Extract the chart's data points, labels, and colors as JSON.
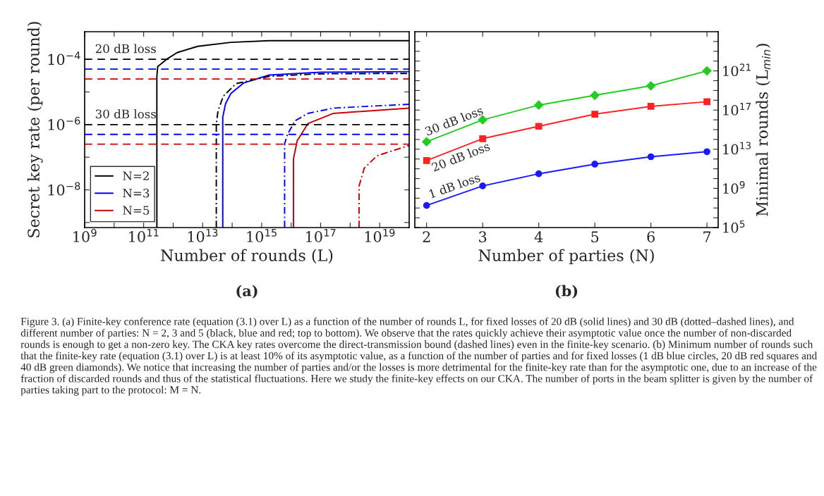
{
  "chart_data": [
    {
      "type": "line",
      "title": "(a)",
      "xlabel": "Number of rounds (L)",
      "ylabel": "Secret key rate (per round)",
      "log": "xy",
      "grid": false,
      "legend": "bottom left",
      "xlim": [
        1000000000.0,
        1e+20
      ],
      "ylim": [
        7e-10,
        0.0007
      ],
      "xticks": [
        {
          "value": 1000000000.0,
          "label": "10$^{9}$"
        },
        {
          "value": 10000000000.0,
          "label": null
        },
        {
          "value": 100000000000.0,
          "label": "10$^{11}$"
        },
        {
          "value": 1000000000000.0,
          "label": null
        },
        {
          "value": 10000000000000.0,
          "label": "10$^{13}$"
        },
        {
          "value": 100000000000000.0,
          "label": null
        },
        {
          "value": 1000000000000000.0,
          "label": "10$^{15}$"
        },
        {
          "value": 1e+16,
          "label": null
        },
        {
          "value": 1e+17,
          "label": "10$^{17}$"
        },
        {
          "value": 1e+18,
          "label": null
        },
        {
          "value": 1e+19,
          "label": "10$^{19}$"
        }
      ],
      "yticks": [
        {
          "value": 1e-09,
          "label": null
        },
        {
          "value": 1e-08,
          "label": "10$^{−8}$"
        },
        {
          "value": 1e-07,
          "label": null
        },
        {
          "value": 1e-06,
          "label": "10$^{−6}$"
        },
        {
          "value": 1e-05,
          "label": null
        },
        {
          "value": 0.0001,
          "label": "10$^{−4}$"
        }
      ],
      "series": [
        {
          "name": "N=2",
          "color": "#000000",
          "line_style": "solid",
          "x": [
            280000000000.0,
            280000000000.0,
            300000000000.0,
            600000000000.0,
            1350000000000.0,
            6800000000000.0,
            90000000000000.0,
            1800000000000000.0,
            1e+20
          ],
          "values": [
            7e-10,
            3e-05,
            6e-05,
            0.0001,
            0.00016,
            0.00025,
            0.00033,
            0.00037,
            0.00037
          ]
        },
        {
          "name": "N=3",
          "color": "#0000ff",
          "line_style": "solid",
          "x": [
            48000000000000.0,
            48000000000000.0,
            60000000000000.0,
            90000000000000.0,
            250000000000000.0,
            1800000000000000.0,
            1e+17,
            1e+20
          ],
          "values": [
            7e-10,
            1.7e-06,
            4.4e-06,
            8.9e-06,
            1.9e-05,
            3.3e-05,
            4e-05,
            4.2e-05
          ]
        },
        {
          "name": "N=5",
          "color": "#cc0000",
          "line_style": "solid",
          "x": [
            1.2e+16,
            1.2e+16,
            1.6e+16,
            3.7e+16,
            2.7e+17,
            1e+20
          ],
          "values": [
            7e-10,
            9e-08,
            3.2e-07,
            1.07e-06,
            2.2e-06,
            3.2e-06
          ]
        },
        {
          "color": "#000000",
          "line_style": "dashdot",
          "x": [
            29000000000000.0,
            29000000000000.0,
            33000000000000.0,
            50000000000000.0,
            135000000000000.0,
            1800000000000000.0,
            1e+17,
            1e+20
          ],
          "values": [
            7e-10,
            1e-06,
            2.6e-06,
            7.4e-06,
            1.8e-05,
            3e-05,
            3.6e-05,
            3.7e-05
          ]
        },
        {
          "color": "#0000ff",
          "line_style": "dashdot",
          "x": [
            6000000000000000.0,
            6000000000000000.0,
            7400000000000000.0,
            1.35e+16,
            3.7e+16,
            2.7e+17,
            1e+20
          ],
          "values": [
            7e-10,
            2.6e-07,
            4.9e-07,
            1.3e-06,
            2.2e-06,
            3.2e-06,
            4.2e-06
          ]
        },
        {
          "color": "#cc0000",
          "line_style": "dashdot",
          "x": [
            2e+18,
            2e+18,
            3e+18,
            8e+18,
            1e+20
          ],
          "values": [
            7e-10,
            1.3e-08,
            4.6e-08,
            1.1e-07,
            2.3e-07
          ]
        }
      ],
      "ref_lines": [
        {
          "axis": "y",
          "value": 0.0001,
          "label": "20 dB loss",
          "color": "#000000",
          "line_style": "dashed"
        },
        {
          "axis": "y",
          "value": 5e-05,
          "color": "#0000ff",
          "line_style": "dashed"
        },
        {
          "axis": "y",
          "value": 2.5e-05,
          "color": "#cc0000",
          "line_style": "dashed"
        },
        {
          "axis": "y",
          "value": 1e-06,
          "label": "30 dB loss",
          "color": "#000000",
          "line_style": "dashed"
        },
        {
          "axis": "y",
          "value": 5e-07,
          "color": "#0000ff",
          "line_style": "dashed"
        },
        {
          "axis": "y",
          "value": 2.5e-07,
          "color": "#cc0000",
          "line_style": "dashed"
        }
      ],
      "annotations": [
        "Figure 3. (a) Finite-key conference rate (equation (3.1) over L) as a function of the number of rounds L, for fixed losses of 20 dB (solid lines) and 30 dB (dotted–dashed lines), and different number of parties: N = 2, 3 and 5 (black, blue and red; top to bottom). We observe that the rates quickly achieve their asymptotic value once the number of non-discarded rounds is enough to get a non-zero key. The CKA key rates overcome the direct-transmission bound (dashed lines) even in the finite-key scenario. (b) Minimum number of rounds such that the finite-key rate (equation (3.1) over L) is at least 10% of its asymptotic value, as a function of the number of parties and for fixed losses (1 dB blue circles, 20 dB red squares and 40 dB green diamonds). We notice that increasing the number of parties and/or the losses is more detrimental for the finite-key rate than for the asymptotic one, due to an increase of the fraction of discarded rounds and thus of the statistical fluctuations. Here we study the finite-key effects on our CKA. The number of ports in the beam splitter is given by the number of parties taking part to the protocol: M = N."
      ]
    },
    {
      "type": "line",
      "title": "(b)",
      "xlabel": "Number of parties (N)",
      "ylabel": "Minimal rounds (L$_{min}$)",
      "log": "y",
      "grid": false,
      "legend": false,
      "x": [
        2,
        3,
        4,
        5,
        6,
        7
      ],
      "xlim": [
        1.79,
        7.2
      ],
      "xticks": [
        2,
        3,
        4,
        5,
        6,
        7
      ],
      "ylim": [
        100000.0,
        1e+25
      ],
      "yticks": [
        {
          "value": 100000.0,
          "label": "10$^{5}$"
        },
        {
          "value": 1000000.0,
          "label": null
        },
        {
          "value": 10000000.0,
          "label": null
        },
        {
          "value": 100000000.0,
          "label": null
        },
        {
          "value": 1000000000.0,
          "label": "10$^{9}$"
        },
        {
          "value": 10000000000.0,
          "label": null
        },
        {
          "value": 100000000000.0,
          "label": null
        },
        {
          "value": 1000000000000.0,
          "label": null
        },
        {
          "value": 10000000000000.0,
          "label": "10$^{13}$"
        },
        {
          "value": 100000000000000.0,
          "label": null
        },
        {
          "value": 1000000000000000.0,
          "label": null
        },
        {
          "value": 1e+16,
          "label": null
        },
        {
          "value": 1e+17,
          "label": "10$^{17}$"
        },
        {
          "value": 1e+18,
          "label": null
        },
        {
          "value": 1e+19,
          "label": null
        },
        {
          "value": 1e+20,
          "label": null
        },
        {
          "value": 1e+21,
          "label": "10$^{21}$"
        },
        {
          "value": 1e+22,
          "label": null
        },
        {
          "value": 1e+23,
          "label": null
        },
        {
          "value": 1e+24,
          "label": null
        }
      ],
      "series": [
        {
          "name": "30 dB loss",
          "color": "#22cc22",
          "marker": "diamond",
          "values": [
            58000000000000.0,
            1e+16,
            3.2e+17,
            3.2e+18,
            3e+19,
            1e+21
          ]
        },
        {
          "name": "20 dB loss",
          "color": "#ff2222",
          "marker": "square",
          "values": [
            690000000000.0,
            120000000000000.0,
            2200000000000000.0,
            3.8e+16,
            2.4e+17,
            7.1e+17
          ]
        },
        {
          "name": "1 dB loss",
          "color": "#1a1aff",
          "marker": "circle",
          "values": [
            18000000.0,
            1800000000.0,
            31000000000.0,
            300000000000.0,
            1700000000000.0,
            5600000000000.0
          ]
        }
      ]
    }
  ]
}
